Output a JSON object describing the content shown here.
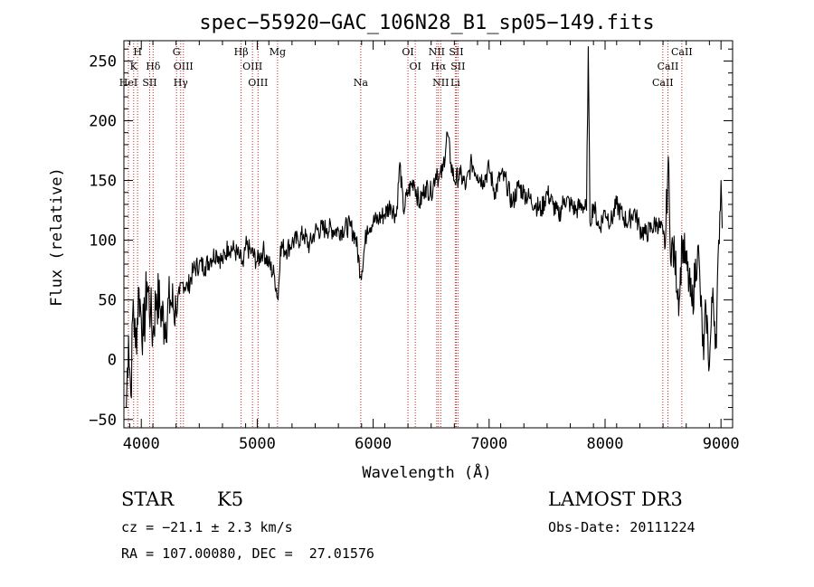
{
  "chart_data": {
    "type": "line",
    "title": "spec−55920−GAC_106N28_B1_sp05−149.fits",
    "xlabel": "Wavelength (Å)",
    "ylabel": "Flux (relative)",
    "xlim": [
      3850,
      9100
    ],
    "ylim": [
      -57,
      267
    ],
    "xticks": [
      4000,
      5000,
      6000,
      7000,
      8000,
      9000
    ],
    "yticks": [
      -50,
      0,
      50,
      100,
      150,
      200,
      250
    ],
    "ytick_labels": [
      "−50",
      "0",
      "50",
      "100",
      "150",
      "200",
      "250"
    ],
    "series": [
      {
        "name": "spectrum",
        "x": [
          3870,
          3890,
          3910,
          3930,
          3950,
          3980,
          4000,
          4020,
          4050,
          4080,
          4100,
          4130,
          4160,
          4200,
          4250,
          4300,
          4330,
          4360,
          4400,
          4450,
          4500,
          4550,
          4600,
          4650,
          4700,
          4750,
          4800,
          4850,
          4880,
          4900,
          4950,
          5000,
          5050,
          5100,
          5150,
          5180,
          5200,
          5250,
          5300,
          5350,
          5400,
          5450,
          5500,
          5600,
          5700,
          5800,
          5850,
          5893,
          5950,
          6000,
          6050,
          6100,
          6150,
          6200,
          6230,
          6260,
          6300,
          6350,
          6400,
          6450,
          6500,
          6550,
          6563,
          6600,
          6640,
          6670,
          6700,
          6750,
          6800,
          6850,
          6900,
          6950,
          7000,
          7050,
          7100,
          7150,
          7200,
          7250,
          7300,
          7350,
          7400,
          7450,
          7500,
          7550,
          7600,
          7650,
          7700,
          7750,
          7800,
          7840,
          7855,
          7870,
          7900,
          7950,
          8000,
          8050,
          8100,
          8150,
          8200,
          8250,
          8300,
          8350,
          8400,
          8450,
          8500,
          8520,
          8545,
          8560,
          8600,
          8640,
          8665,
          8700,
          8750,
          8800,
          8820,
          8850,
          8870,
          8900,
          8930,
          8960,
          8980,
          9000,
          9010
        ],
        "y": [
          -40,
          20,
          -30,
          50,
          10,
          60,
          35,
          20,
          65,
          40,
          20,
          55,
          45,
          30,
          50,
          40,
          55,
          65,
          60,
          75,
          80,
          78,
          85,
          90,
          82,
          95,
          92,
          85,
          78,
          95,
          90,
          82,
          92,
          80,
          70,
          50,
          95,
          92,
          98,
          100,
          105,
          95,
          108,
          110,
          108,
          112,
          102,
          70,
          112,
          115,
          118,
          122,
          130,
          120,
          165,
          125,
          140,
          150,
          130,
          145,
          140,
          160,
          150,
          158,
          190,
          165,
          150,
          155,
          145,
          165,
          155,
          150,
          160,
          140,
          155,
          148,
          130,
          145,
          140,
          135,
          130,
          125,
          140,
          130,
          120,
          135,
          130,
          125,
          130,
          125,
          262,
          115,
          130,
          110,
          125,
          115,
          130,
          120,
          115,
          125,
          110,
          105,
          110,
          115,
          105,
          95,
          170,
          100,
          85,
          50,
          100,
          80,
          45,
          95,
          60,
          0,
          45,
          -5,
          60,
          10,
          100,
          150,
          110
        ]
      }
    ],
    "spectral_lines": [
      {
        "label": "H",
        "x": 3968,
        "row": 0
      },
      {
        "label": "K",
        "x": 3934,
        "row": 1
      },
      {
        "label": "HeI",
        "x": 3889,
        "row": 2
      },
      {
        "label": "SII",
        "x": 4072,
        "row": 2
      },
      {
        "label": "Hδ",
        "x": 4102,
        "row": 1
      },
      {
        "label": "G",
        "x": 4304,
        "row": 0
      },
      {
        "label": "OIII",
        "x": 4363,
        "row": 1
      },
      {
        "label": "Hγ",
        "x": 4340,
        "row": 2
      },
      {
        "label": "Hβ",
        "x": 4861,
        "row": 0
      },
      {
        "label": "OIII",
        "x": 4959,
        "row": 1
      },
      {
        "label": "OIII",
        "x": 5007,
        "row": 2
      },
      {
        "label": "Mg",
        "x": 5175,
        "row": 0
      },
      {
        "label": "Na",
        "x": 5893,
        "row": 2
      },
      {
        "label": "OI",
        "x": 6300,
        "row": 0
      },
      {
        "label": "OI",
        "x": 6363,
        "row": 1
      },
      {
        "label": "NII",
        "x": 6548,
        "row": 0
      },
      {
        "label": "NII",
        "x": 6583,
        "row": 2
      },
      {
        "label": "Hα",
        "x": 6563,
        "row": 1
      },
      {
        "label": "SII",
        "x": 6717,
        "row": 0
      },
      {
        "label": "SII",
        "x": 6731,
        "row": 1
      },
      {
        "label": "Li",
        "x": 6708,
        "row": 2
      },
      {
        "label": "CaII",
        "x": 8498,
        "row": 2
      },
      {
        "label": "CaII",
        "x": 8542,
        "row": 1
      },
      {
        "label": "CaII",
        "x": 8662,
        "row": 0
      }
    ],
    "line_color": "#cc2222"
  },
  "info": {
    "object_class": "STAR",
    "subclass": "K5",
    "survey": "LAMOST DR3",
    "redshift": "cz = −21.1 ± 2.3 km/s",
    "obs_date": "Obs-Date: 20111224",
    "coords": "RA = 107.00080, DEC =  27.01576"
  }
}
